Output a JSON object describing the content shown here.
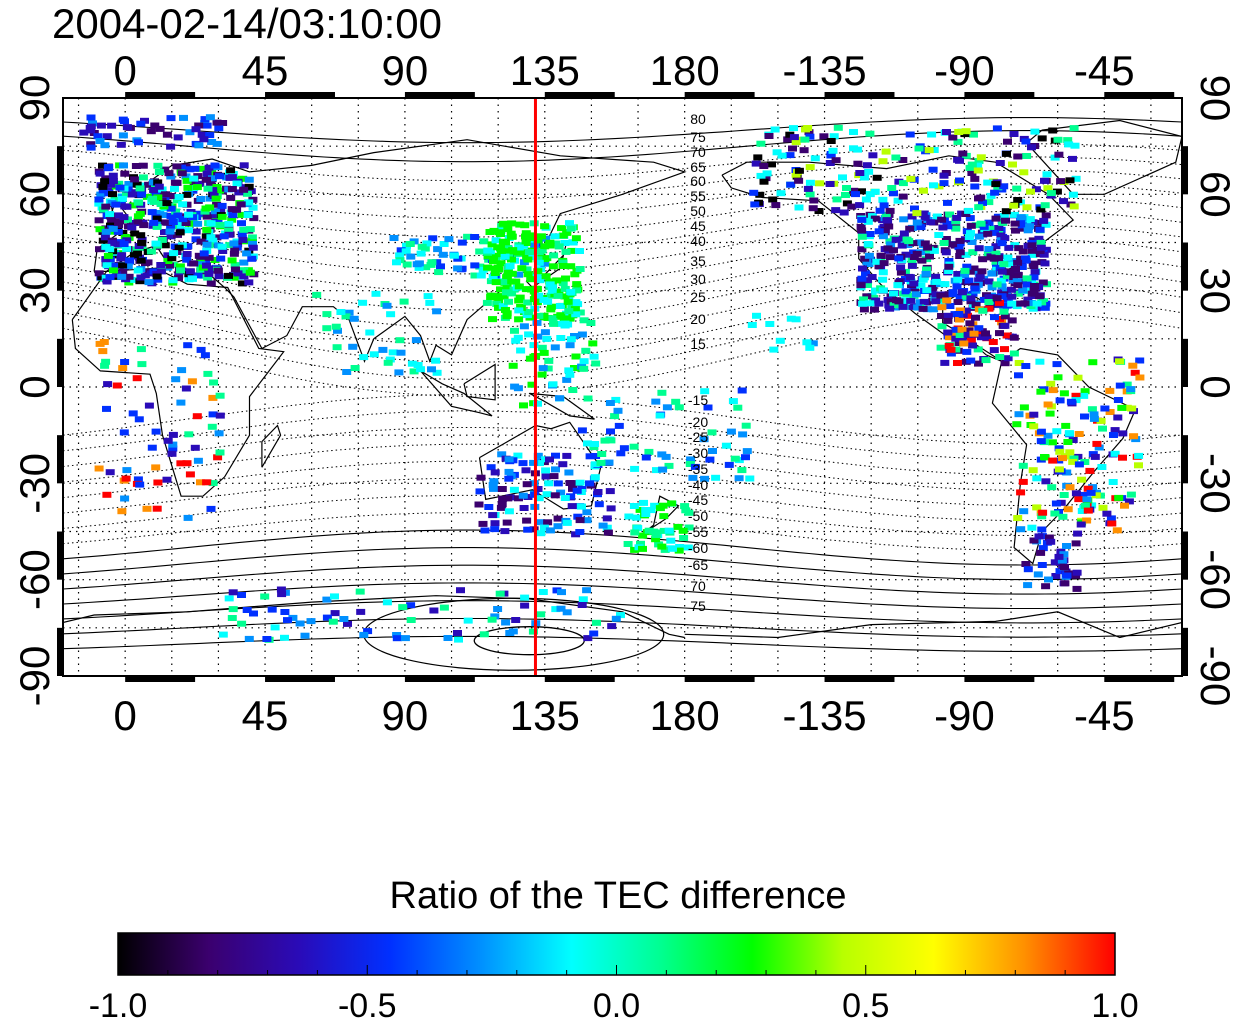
{
  "map": {
    "timestamp": "2004-02-14/03:10:00",
    "top_ticks": [
      "0",
      "45",
      "90",
      "135",
      "180",
      "-135",
      "-90",
      "-45"
    ],
    "bottom_ticks": [
      "0",
      "45",
      "90",
      "135",
      "180",
      "-135",
      "-90",
      "-45"
    ],
    "left_ticks": [
      "90",
      "60",
      "30",
      "0",
      "-30",
      "-60",
      "-90"
    ],
    "right_ticks": [
      "90",
      "60",
      "30",
      "0",
      "-30",
      "-60",
      "-90"
    ],
    "contour_labels_north": [
      "80",
      "75",
      "70",
      "65",
      "60",
      "55",
      "50",
      "45",
      "40",
      "35",
      "30",
      "25",
      "20",
      "15"
    ],
    "contour_labels_south": [
      "-15",
      "-20",
      "-25",
      "-30",
      "-35",
      "-40",
      "-45",
      "-50",
      "-55",
      "-60",
      "-65",
      "70",
      "75"
    ],
    "marker_longitude": 132,
    "marker_color": "#ff0000",
    "lon_range_deg": [
      -20,
      340
    ],
    "lat_range_deg": [
      -90,
      90
    ]
  },
  "colorbar": {
    "title": "Ratio of the TEC difference",
    "tick_labels": [
      "-1.0",
      "-0.5",
      "0.0",
      "0.5",
      "1.0"
    ],
    "range": [
      -1.0,
      1.0
    ],
    "colors": [
      "#000000",
      "#3b006e",
      "#2a0bb8",
      "#0030ff",
      "#0090ff",
      "#00ffff",
      "#00ff90",
      "#00ff00",
      "#b8ff00",
      "#ffff00",
      "#ff9000",
      "#ff0000"
    ]
  }
}
